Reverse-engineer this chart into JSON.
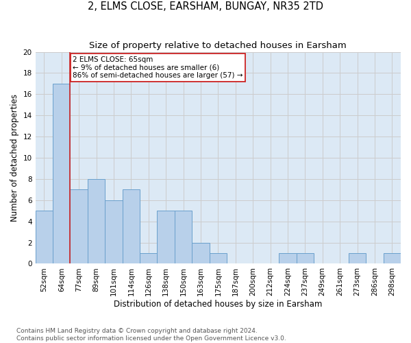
{
  "title": "2, ELMS CLOSE, EARSHAM, BUNGAY, NR35 2TD",
  "subtitle": "Size of property relative to detached houses in Earsham",
  "xlabel": "Distribution of detached houses by size in Earsham",
  "ylabel": "Number of detached properties",
  "categories": [
    "52sqm",
    "64sqm",
    "77sqm",
    "89sqm",
    "101sqm",
    "114sqm",
    "126sqm",
    "138sqm",
    "150sqm",
    "163sqm",
    "175sqm",
    "187sqm",
    "200sqm",
    "212sqm",
    "224sqm",
    "237sqm",
    "249sqm",
    "261sqm",
    "273sqm",
    "286sqm",
    "298sqm"
  ],
  "values": [
    5,
    17,
    7,
    8,
    6,
    7,
    1,
    5,
    5,
    2,
    1,
    0,
    0,
    0,
    1,
    1,
    0,
    0,
    1,
    0,
    1
  ],
  "bar_color": "#b8d0ea",
  "bar_edge_color": "#6aa0cc",
  "property_line_color": "#cc2222",
  "annotation_text": "2 ELMS CLOSE: 65sqm\n← 9% of detached houses are smaller (6)\n86% of semi-detached houses are larger (57) →",
  "annotation_box_color": "#ffffff",
  "annotation_box_edge": "#cc2222",
  "ylim": [
    0,
    20
  ],
  "yticks": [
    0,
    2,
    4,
    6,
    8,
    10,
    12,
    14,
    16,
    18,
    20
  ],
  "grid_color": "#cccccc",
  "background_color": "#dce9f5",
  "footnote": "Contains HM Land Registry data © Crown copyright and database right 2024.\nContains public sector information licensed under the Open Government Licence v3.0.",
  "title_fontsize": 10.5,
  "subtitle_fontsize": 9.5,
  "xlabel_fontsize": 8.5,
  "ylabel_fontsize": 8.5,
  "tick_fontsize": 7.5,
  "annotation_fontsize": 7.5,
  "footnote_fontsize": 6.5
}
